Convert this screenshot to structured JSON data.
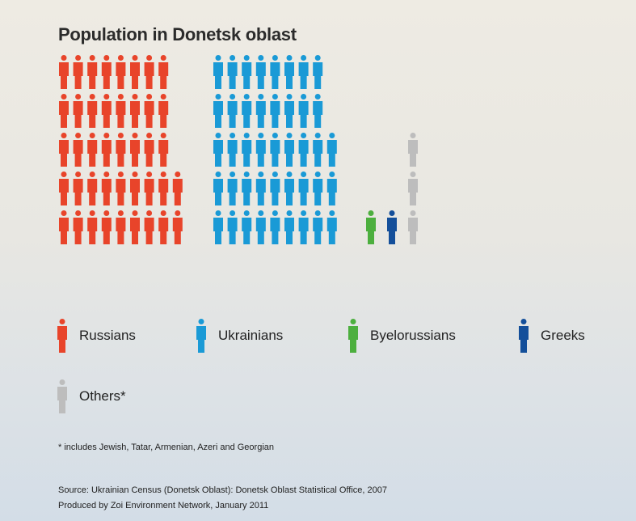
{
  "title": "Population in Donetsk oblast",
  "chart_data": {
    "type": "pictogram",
    "unit": "person icons",
    "series": [
      {
        "name": "Russians",
        "value": 42,
        "color": "#e8442a"
      },
      {
        "name": "Ukrainians",
        "value": 43,
        "color": "#1a9ad6"
      },
      {
        "name": "Byelorussians",
        "value": 1,
        "color": "#4caf3e"
      },
      {
        "name": "Greeks",
        "value": 1,
        "color": "#144f9a"
      },
      {
        "name": "Others*",
        "value": 3,
        "color": "#bdbdbd"
      }
    ]
  },
  "legend": [
    {
      "label": "Russians",
      "color": "#e8442a",
      "icon": "person-icon"
    },
    {
      "label": "Ukrainians",
      "color": "#1a9ad6",
      "icon": "person-icon"
    },
    {
      "label": "Byelorussians",
      "color": "#4caf3e",
      "icon": "person-icon"
    },
    {
      "label": "Greeks",
      "color": "#144f9a",
      "icon": "person-icon"
    },
    {
      "label": "Others*",
      "color": "#bdbdbd",
      "icon": "person-icon"
    }
  ],
  "footnote": "* includes Jewish, Tatar, Armenian, Azeri and Georgian",
  "source": "Source: Ukrainian Census (Donetsk Oblast): Donetsk Oblast Statistical Office, 2007",
  "produced": "Produced by Zoi Environment Network, January 2011"
}
